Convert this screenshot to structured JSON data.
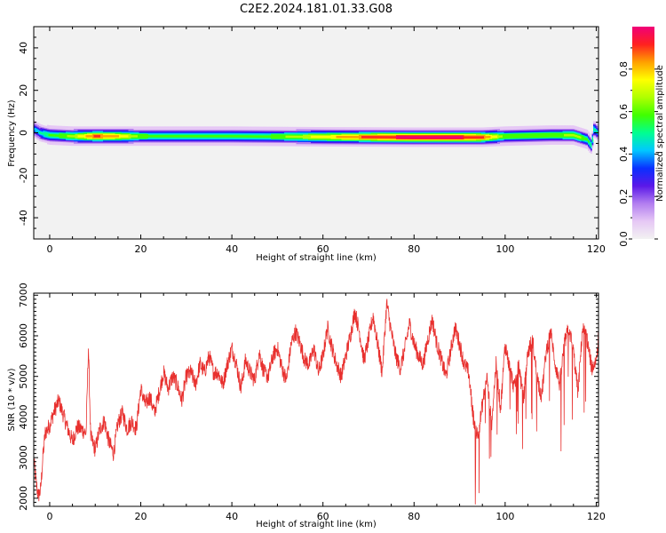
{
  "figure": {
    "title": "C2E2.2024.181.01.33.G08"
  },
  "colors": {
    "snr_line": "#e8302e",
    "colormap": [
      "#f2f2f2",
      "#e6c8f5",
      "#b27ef0",
      "#5a18e8",
      "#0a30ff",
      "#00c8ff",
      "#00ff90",
      "#40ff00",
      "#b0ff00",
      "#ffff00",
      "#ffa000",
      "#ff2020",
      "#f00078"
    ]
  },
  "chart_data": [
    {
      "type": "heatmap",
      "title": "",
      "xlabel": "Height of straight line (km)",
      "ylabel": "Frequency (Hz)",
      "xlim": [
        -3.5,
        120.5
      ],
      "ylim": [
        -50,
        50
      ],
      "xticks": [
        0,
        20,
        40,
        60,
        80,
        100,
        120
      ],
      "yticks": [
        -40,
        -20,
        0,
        20,
        40
      ],
      "colorbar": {
        "label": "Normalized spectral amplitude",
        "range": [
          0,
          1
        ],
        "ticks": [
          0.0,
          0.2,
          0.4,
          0.6,
          0.8
        ]
      },
      "band": {
        "center_hz": [
          [
            -3.5,
            2
          ],
          [
            -2,
            0
          ],
          [
            0,
            -1
          ],
          [
            5,
            -1.5
          ],
          [
            20,
            -1.5
          ],
          [
            40,
            -1.5
          ],
          [
            60,
            -1.8
          ],
          [
            80,
            -2
          ],
          [
            95,
            -2
          ],
          [
            100,
            -1.5
          ],
          [
            110,
            -1
          ],
          [
            115,
            -1
          ],
          [
            118,
            -3
          ],
          [
            119,
            -6
          ],
          [
            119.5,
            2
          ],
          [
            120.5,
            0
          ]
        ],
        "peak_amplitude": [
          [
            -3.5,
            0.35
          ],
          [
            0,
            0.5
          ],
          [
            5,
            0.6
          ],
          [
            10,
            0.85
          ],
          [
            15,
            0.75
          ],
          [
            20,
            0.55
          ],
          [
            30,
            0.5
          ],
          [
            40,
            0.5
          ],
          [
            50,
            0.55
          ],
          [
            60,
            0.7
          ],
          [
            70,
            0.85
          ],
          [
            80,
            0.95
          ],
          [
            88,
            0.95
          ],
          [
            95,
            0.85
          ],
          [
            100,
            0.55
          ],
          [
            110,
            0.55
          ],
          [
            116,
            0.6
          ],
          [
            120.5,
            0.4
          ]
        ]
      }
    },
    {
      "type": "line",
      "title": "",
      "xlabel": "Height of straight line (km)",
      "ylabel": "SNR (10 * v/v)",
      "xlim": [
        -3.5,
        120.5
      ],
      "ylim": [
        1800,
        7050
      ],
      "xticks": [
        0,
        20,
        40,
        60,
        80,
        100,
        120
      ],
      "yticks": [
        2000,
        3000,
        4000,
        5000,
        6000,
        7000
      ],
      "series": [
        {
          "points": [
            [
              -3.5,
              2950
            ],
            [
              -3,
              2400
            ],
            [
              -2.5,
              2050
            ],
            [
              -2,
              2200
            ],
            [
              -1.5,
              3000
            ],
            [
              -1,
              3600
            ],
            [
              0,
              3800
            ],
            [
              1,
              4150
            ],
            [
              2,
              4400
            ],
            [
              3,
              4050
            ],
            [
              4,
              3700
            ],
            [
              5,
              3400
            ],
            [
              6,
              3750
            ],
            [
              7,
              3700
            ],
            [
              8,
              3600
            ],
            [
              8.5,
              5750
            ],
            [
              9,
              3500
            ],
            [
              10,
              3200
            ],
            [
              11,
              3700
            ],
            [
              12,
              3900
            ],
            [
              13,
              3400
            ],
            [
              14,
              3100
            ],
            [
              15,
              3850
            ],
            [
              16,
              4100
            ],
            [
              17,
              3700
            ],
            [
              18,
              3900
            ],
            [
              19,
              3700
            ],
            [
              20,
              4700
            ],
            [
              21,
              4300
            ],
            [
              22,
              4500
            ],
            [
              23,
              4100
            ],
            [
              24,
              4600
            ],
            [
              25,
              5100
            ],
            [
              26,
              4700
            ],
            [
              27,
              5000
            ],
            [
              28,
              4800
            ],
            [
              29,
              4400
            ],
            [
              30,
              5000
            ],
            [
              31,
              5100
            ],
            [
              32,
              4800
            ],
            [
              33,
              5300
            ],
            [
              34,
              5100
            ],
            [
              35,
              5500
            ],
            [
              36,
              5100
            ],
            [
              37,
              5100
            ],
            [
              38,
              4800
            ],
            [
              39,
              5300
            ],
            [
              40,
              5700
            ],
            [
              41,
              5300
            ],
            [
              42,
              4700
            ],
            [
              43,
              5400
            ],
            [
              44,
              5100
            ],
            [
              45,
              4900
            ],
            [
              46,
              5600
            ],
            [
              47,
              5100
            ],
            [
              48,
              5000
            ],
            [
              49,
              5500
            ],
            [
              50,
              5700
            ],
            [
              51,
              5200
            ],
            [
              52,
              4900
            ],
            [
              53,
              5800
            ],
            [
              54,
              6100
            ],
            [
              55,
              5800
            ],
            [
              56,
              5400
            ],
            [
              57,
              5300
            ],
            [
              58,
              5700
            ],
            [
              59,
              5100
            ],
            [
              60,
              5500
            ],
            [
              61,
              6200
            ],
            [
              62,
              5700
            ],
            [
              63,
              5300
            ],
            [
              64,
              5000
            ],
            [
              65,
              5500
            ],
            [
              66,
              6000
            ],
            [
              67,
              6600
            ],
            [
              68,
              6100
            ],
            [
              69,
              5400
            ],
            [
              70,
              5900
            ],
            [
              71,
              6500
            ],
            [
              72,
              5800
            ],
            [
              73,
              5100
            ],
            [
              74,
              6800
            ],
            [
              75,
              6100
            ],
            [
              76,
              5500
            ],
            [
              77,
              5200
            ],
            [
              78,
              5700
            ],
            [
              79,
              6300
            ],
            [
              80,
              5800
            ],
            [
              81,
              5500
            ],
            [
              82,
              5300
            ],
            [
              83,
              5900
            ],
            [
              84,
              6400
            ],
            [
              85,
              5800
            ],
            [
              86,
              5400
            ],
            [
              87,
              5000
            ],
            [
              88,
              5600
            ],
            [
              89,
              6200
            ],
            [
              90,
              5800
            ],
            [
              91,
              5300
            ],
            [
              92,
              5100
            ],
            [
              93,
              4000
            ],
            [
              94,
              3500
            ],
            [
              95,
              4300
            ],
            [
              96,
              5000
            ],
            [
              97,
              3800
            ],
            [
              98,
              5300
            ],
            [
              99,
              4200
            ],
            [
              100,
              5800
            ],
            [
              101,
              5200
            ],
            [
              102,
              4700
            ],
            [
              103,
              5300
            ],
            [
              104,
              4400
            ],
            [
              105,
              5600
            ],
            [
              106,
              5900
            ],
            [
              107,
              5000
            ],
            [
              108,
              4500
            ],
            [
              109,
              5600
            ],
            [
              110,
              6100
            ],
            [
              111,
              5300
            ],
            [
              112,
              4800
            ],
            [
              113,
              5800
            ],
            [
              114,
              6200
            ],
            [
              115,
              5600
            ],
            [
              116,
              4600
            ],
            [
              117,
              6200
            ],
            [
              118,
              5900
            ],
            [
              119,
              5200
            ],
            [
              120,
              5400
            ],
            [
              120.5,
              6000
            ]
          ]
        }
      ]
    }
  ]
}
